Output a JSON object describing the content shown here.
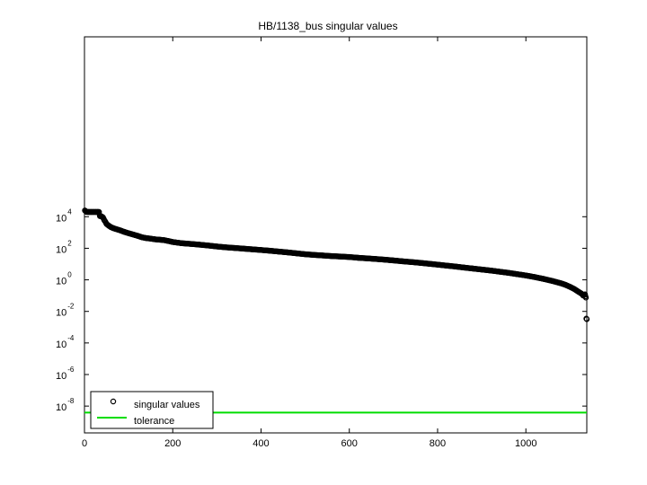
{
  "chart_data": {
    "type": "scatter",
    "title": "HB/1138_bus singular values",
    "xlabel": "",
    "ylabel": "",
    "xlim": [
      0,
      1138
    ],
    "ylim_log10": [
      -9.7,
      15.4
    ],
    "y_scale": "log",
    "x_ticks": [
      0,
      200,
      400,
      600,
      800,
      1000
    ],
    "y_ticks_log10": [
      -8,
      -6,
      -4,
      -2,
      0,
      2,
      4
    ],
    "y_tick_base": "10",
    "grid": false,
    "legend_position": "bottom-left",
    "series": [
      {
        "name": "singular values",
        "marker": "circle",
        "color": "#000000",
        "x": [
          1,
          3,
          5,
          10,
          15,
          20,
          25,
          30,
          33,
          35,
          38,
          40,
          42,
          45,
          48,
          50,
          55,
          60,
          65,
          70,
          80,
          90,
          100,
          110,
          120,
          130,
          140,
          150,
          160,
          170,
          180,
          190,
          200,
          220,
          240,
          260,
          280,
          300,
          320,
          340,
          360,
          380,
          400,
          420,
          440,
          460,
          480,
          500,
          520,
          540,
          560,
          580,
          600,
          620,
          640,
          660,
          680,
          700,
          720,
          740,
          760,
          780,
          800,
          820,
          840,
          860,
          880,
          900,
          920,
          940,
          960,
          980,
          1000,
          1020,
          1040,
          1060,
          1080,
          1090,
          1100,
          1110,
          1115,
          1120,
          1125,
          1128,
          1130,
          1132,
          1134,
          1135,
          1136,
          1137,
          1138
        ],
        "y": [
          25000,
          22000,
          20000,
          20000,
          20000,
          20000,
          20000,
          20000,
          20000,
          11000,
          10500,
          10000,
          9000,
          6000,
          4500,
          3500,
          2700,
          2200,
          1900,
          1700,
          1400,
          1100,
          900,
          750,
          620,
          500,
          440,
          410,
          370,
          350,
          330,
          290,
          250,
          210,
          190,
          170,
          150,
          130,
          115,
          105,
          95,
          86,
          78,
          70,
          62,
          55,
          48,
          42,
          38,
          35,
          32,
          30,
          28,
          25,
          23,
          21,
          19,
          17,
          15,
          13.5,
          12,
          10.5,
          9.2,
          8,
          7,
          6,
          5.2,
          4.5,
          3.9,
          3.3,
          2.8,
          2.3,
          1.9,
          1.5,
          1.15,
          0.85,
          0.6,
          0.48,
          0.36,
          0.26,
          0.21,
          0.17,
          0.14,
          0.12,
          0.1,
          0.11,
          0.12,
          0.09,
          0.075,
          0.0035,
          0.0032
        ]
      },
      {
        "name": "tolerance",
        "marker": "line",
        "color": "#00dd00",
        "x": [
          0,
          1138
        ],
        "y": [
          3.9e-09,
          3.9e-09
        ]
      }
    ]
  }
}
